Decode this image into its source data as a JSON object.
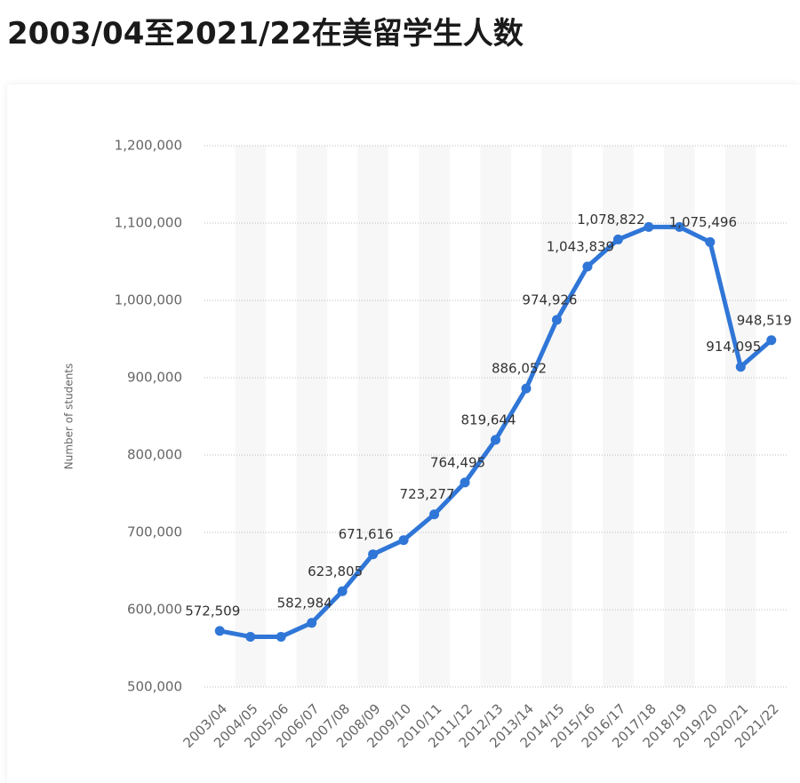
{
  "chart_data": {
    "type": "line",
    "title": "2003/04至2021/22在美留学生人数",
    "y_label": "Number of students",
    "categories": [
      "2003/04",
      "2004/05",
      "2005/06",
      "2006/07",
      "2007/08",
      "2008/09",
      "2009/10",
      "2010/11",
      "2011/12",
      "2012/13",
      "2013/14",
      "2014/15",
      "2015/16",
      "2016/17",
      "2017/18",
      "2018/19",
      "2019/20",
      "2020/21",
      "2021/22"
    ],
    "series": [
      {
        "name": "Number of students",
        "color": "#2f76d7",
        "values": [
          572509,
          565000,
          565000,
          582984,
          623805,
          671616,
          690000,
          723277,
          764495,
          819644,
          886052,
          974926,
          1043839,
          1078822,
          1095000,
          1095000,
          1075496,
          914095,
          948519
        ],
        "value_labels": [
          "572,509",
          null,
          null,
          "582,984",
          "623,805",
          "671,616",
          null,
          "723,277",
          "764,495",
          "819,644",
          "886,052",
          "974,926",
          "1,043,839",
          "1,078,822",
          null,
          null,
          "1,075,496",
          "914,095",
          "948,519"
        ]
      }
    ],
    "ylim": [
      500000,
      1200000
    ],
    "yticks": [
      {
        "value": 500000,
        "label": "500,000"
      },
      {
        "value": 600000,
        "label": "600,000"
      },
      {
        "value": 700000,
        "label": "700,000"
      },
      {
        "value": 800000,
        "label": "800,000"
      },
      {
        "value": 900000,
        "label": "900,000"
      },
      {
        "value": 1000000,
        "label": "1,000,000"
      },
      {
        "value": 1100000,
        "label": "1,100,000"
      },
      {
        "value": 1200000,
        "label": "1,200,000"
      }
    ],
    "grid": true
  }
}
